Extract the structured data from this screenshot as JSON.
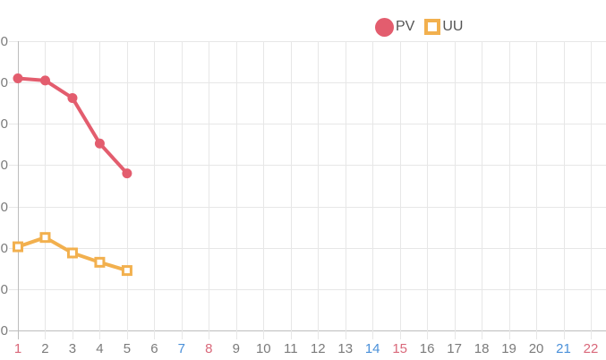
{
  "legend": {
    "items": [
      {
        "label": "PV",
        "marker": "filled-circle",
        "color": "#e35d6e"
      },
      {
        "label": "UU",
        "marker": "open-square",
        "color": "#f2b04e"
      }
    ]
  },
  "colors": {
    "gridline": "#e7e7e7",
    "axis_line": "#bdbdbd",
    "tick_text": "#7b7b7b",
    "legend_text": "#555555",
    "background": "#ffffff"
  },
  "chart_data": {
    "type": "line",
    "title": "",
    "xlabel": "",
    "ylabel": "",
    "x_categories": [
      "1",
      "2",
      "3",
      "4",
      "5",
      "6",
      "7",
      "8",
      "9",
      "10",
      "11",
      "12",
      "13",
      "14",
      "15",
      "16",
      "17",
      "18",
      "19",
      "20",
      "21",
      "22"
    ],
    "series": [
      {
        "name": "PV",
        "color": "#e35d6e",
        "marker": "filled-circle",
        "x": [
          1,
          2,
          3,
          4,
          5
        ],
        "values": [
          1220,
          1210,
          1125,
          905,
          760
        ]
      },
      {
        "name": "UU",
        "color": "#f2b04e",
        "marker": "open-square",
        "x": [
          1,
          2,
          3,
          4,
          5
        ],
        "values": [
          405,
          450,
          375,
          330,
          290
        ]
      }
    ],
    "ylim": [
      0,
      1400
    ],
    "y_tick_step": 200,
    "y_tick_labels_visible": [
      "0",
      "0",
      "0",
      "0",
      "0",
      "0",
      "0",
      "0"
    ],
    "x_tick_colors": {
      "default": "#7b7b7b",
      "sunday": "#d9687a",
      "saturday": "#4a90d9",
      "sunday_categories": [
        "1",
        "8",
        "15",
        "22"
      ],
      "saturday_categories": [
        "7",
        "14",
        "21"
      ]
    },
    "grid": true,
    "legend_position": "top-right"
  }
}
